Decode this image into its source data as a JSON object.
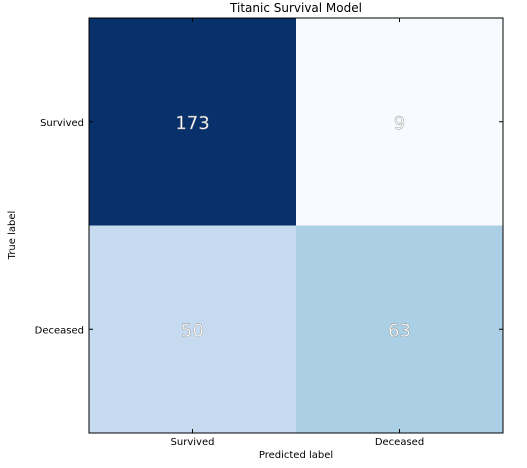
{
  "chart_data": {
    "type": "heatmap",
    "title": "Titanic Survival Model",
    "xlabel": "Predicted label",
    "ylabel": "True label",
    "x_categories": [
      "Survived",
      "Deceased"
    ],
    "y_categories": [
      "Survived",
      "Deceased"
    ],
    "values": [
      [
        173,
        9
      ],
      [
        50,
        63
      ]
    ],
    "colormap": "Blues",
    "cell_colors": [
      [
        "#08306b",
        "#f7fbff"
      ],
      [
        "#c6dbef",
        "#abd0e6"
      ]
    ],
    "text_color": "#ffffff"
  }
}
